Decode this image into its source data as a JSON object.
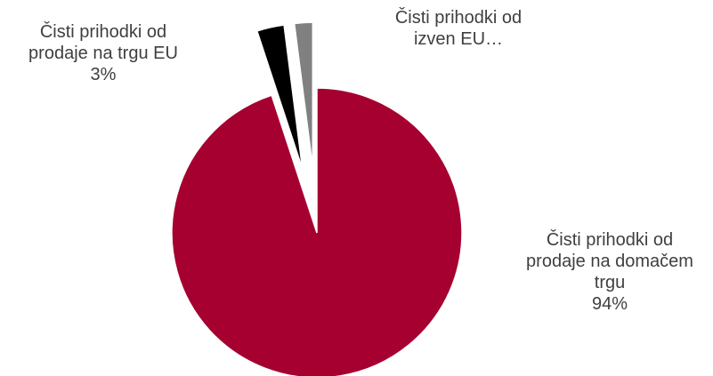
{
  "chart_data": {
    "type": "pie",
    "title": "",
    "slices": [
      {
        "name": "Čisti prihodki od prodaje na domačem trgu",
        "value": 94,
        "color": "#A50030",
        "label_lines": [
          "Čisti prihodki od",
          "prodaje na domačem",
          "trgu"
        ],
        "percent_label": "94%",
        "exploded": false
      },
      {
        "name": "Čisti prihodki od prodaje na trgu EU",
        "value": 3,
        "color": "#000000",
        "label_lines": [
          "Čisti prihodki od",
          "prodaje na trgu EU"
        ],
        "percent_label": "3%",
        "exploded": true
      },
      {
        "name": "Čisti prihodki od izven EU",
        "value": 2,
        "color": "#808080",
        "label_lines": [
          "Čisti prihodki od",
          "izven EU…"
        ],
        "percent_label": "",
        "exploded": true
      }
    ],
    "start_angle_deg": 0,
    "direction": "clockwise",
    "legend": "none"
  }
}
